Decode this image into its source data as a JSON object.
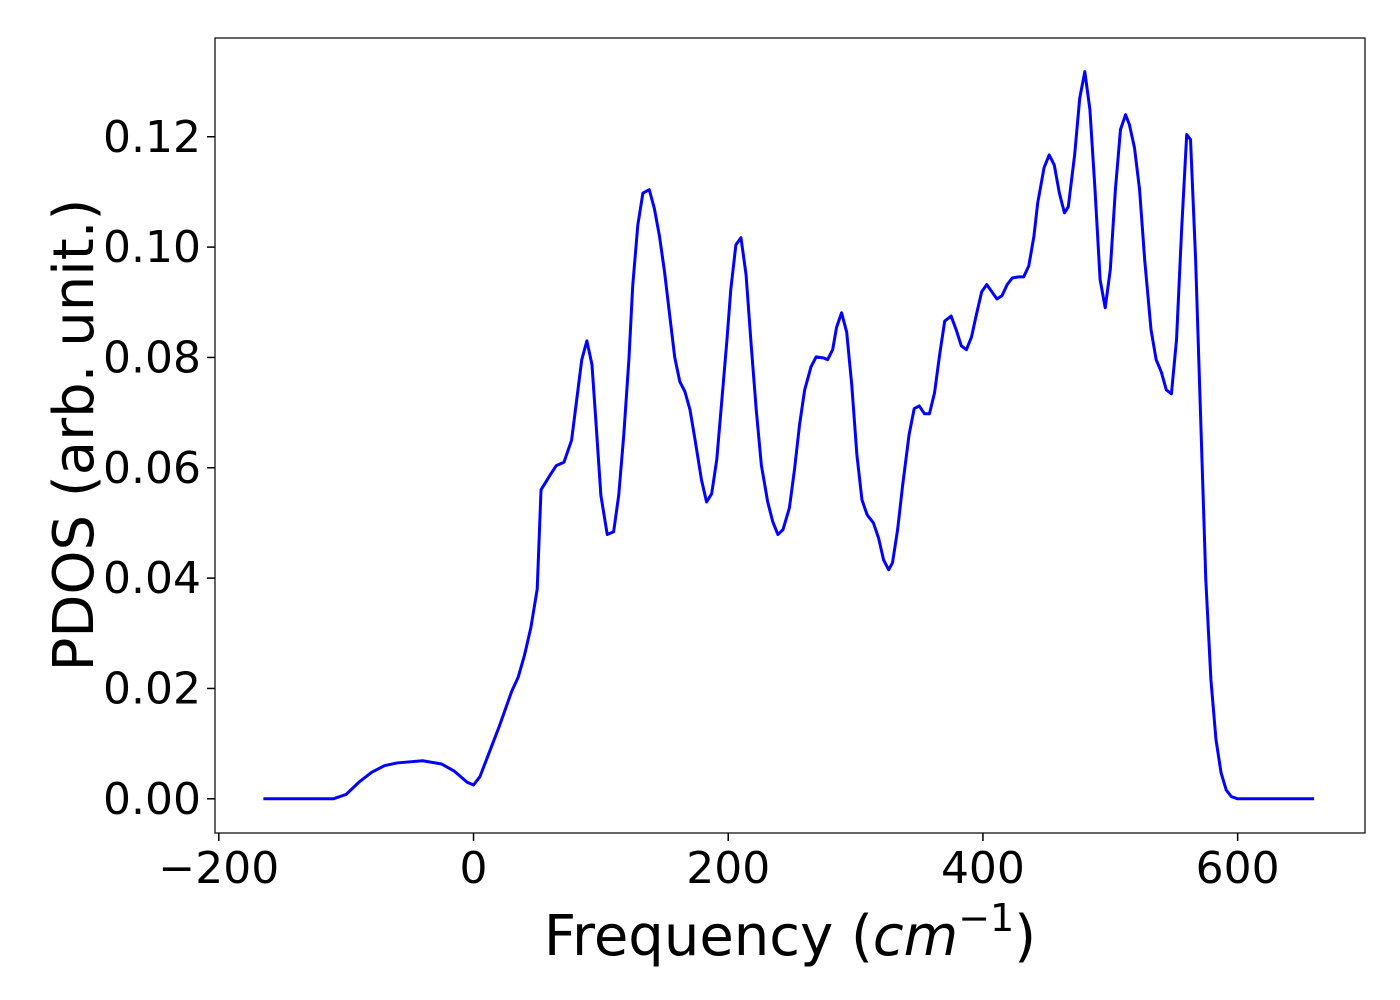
{
  "chart_data": {
    "type": "line",
    "xlabel": [
      "Frequency (",
      "cm",
      "−1",
      ")"
    ],
    "ylabel": "PDOS (arb. unit.)",
    "xlim": [
      -203,
      700
    ],
    "ylim": [
      -0.0062,
      0.1379
    ],
    "xticks": [
      {
        "value": -200,
        "label": "−200"
      },
      0,
      200,
      400,
      600
    ],
    "yticks": [
      {
        "value": 0,
        "label": "0.00"
      },
      {
        "value": 0.02,
        "label": "0.02"
      },
      {
        "value": 0.04,
        "label": "0.04"
      },
      {
        "value": 0.06,
        "label": "0.06"
      },
      {
        "value": 0.08,
        "label": "0.08"
      },
      {
        "value": 0.1,
        "label": "0.10"
      },
      {
        "value": 0.12,
        "label": "0.12"
      }
    ],
    "series": [
      {
        "name": "PDOS",
        "color": "#0000ff",
        "x": [
          -165,
          -110,
          -100,
          -90,
          -80,
          -70,
          -60,
          -40,
          -25,
          -15,
          -5,
          0,
          5,
          10,
          20,
          30,
          35,
          40,
          45,
          50,
          53,
          61,
          65,
          71,
          77,
          85,
          89,
          93,
          96,
          100,
          105,
          110,
          114,
          118,
          122,
          125,
          129,
          133,
          138,
          142,
          146,
          150,
          154,
          158,
          162,
          166,
          170,
          174,
          179,
          183,
          187,
          191,
          195,
          199,
          202,
          206,
          210,
          214,
          218,
          222,
          226,
          231,
          235,
          239,
          243,
          248,
          252,
          256,
          260,
          265,
          269,
          275,
          278,
          282,
          285,
          289,
          293,
          297,
          301,
          305,
          309,
          314,
          318,
          322,
          326,
          329,
          333,
          337,
          342,
          346,
          350,
          354,
          358,
          362,
          366,
          370,
          375,
          379,
          383,
          387,
          391,
          395,
          399,
          403,
          407,
          411,
          415,
          419,
          423,
          428,
          432,
          436,
          440,
          443,
          448,
          452,
          456,
          460,
          464,
          467,
          472,
          476,
          480,
          484,
          488,
          492,
          496,
          500,
          504,
          508,
          512,
          515,
          519,
          523,
          527,
          532,
          536,
          540,
          544,
          548,
          552,
          556,
          560,
          563,
          567,
          571,
          575,
          579,
          583,
          587,
          591,
          595,
          600,
          660
        ],
        "values": [
          0,
          0,
          0.0008,
          0.003,
          0.0048,
          0.006,
          0.0065,
          0.0069,
          0.0063,
          0.005,
          0.003,
          0.0025,
          0.004,
          0.007,
          0.013,
          0.0195,
          0.022,
          0.026,
          0.031,
          0.038,
          0.056,
          0.059,
          0.0604,
          0.061,
          0.065,
          0.0796,
          0.083,
          0.0787,
          0.0687,
          0.055,
          0.0479,
          0.0484,
          0.055,
          0.066,
          0.0796,
          0.093,
          0.104,
          0.1098,
          0.1104,
          0.107,
          0.102,
          0.0955,
          0.0877,
          0.08,
          0.0756,
          0.0738,
          0.0705,
          0.065,
          0.0578,
          0.0538,
          0.0553,
          0.0615,
          0.0723,
          0.0832,
          0.0923,
          0.1004,
          0.1017,
          0.095,
          0.0823,
          0.0705,
          0.0605,
          0.0538,
          0.0502,
          0.0479,
          0.0488,
          0.0527,
          0.0596,
          0.0678,
          0.0741,
          0.0783,
          0.0801,
          0.0799,
          0.0796,
          0.0814,
          0.0854,
          0.0881,
          0.0846,
          0.075,
          0.0624,
          0.0542,
          0.0515,
          0.05,
          0.0473,
          0.0433,
          0.0415,
          0.0428,
          0.0488,
          0.0569,
          0.066,
          0.0707,
          0.0712,
          0.0698,
          0.0698,
          0.0736,
          0.0805,
          0.0866,
          0.0875,
          0.085,
          0.0821,
          0.0814,
          0.0837,
          0.0879,
          0.0919,
          0.0932,
          0.0919,
          0.0906,
          0.0912,
          0.0932,
          0.0944,
          0.0946,
          0.0946,
          0.0966,
          0.1019,
          0.108,
          0.1144,
          0.1167,
          0.1149,
          0.1098,
          0.1062,
          0.1073,
          0.1167,
          0.127,
          0.1318,
          0.1249,
          0.1104,
          0.0941,
          0.089,
          0.0959,
          0.1104,
          0.1213,
          0.124,
          0.1222,
          0.118,
          0.1104,
          0.0977,
          0.085,
          0.0796,
          0.0774,
          0.0741,
          0.0734,
          0.0832,
          0.1031,
          0.1204,
          0.1195,
          0.0977,
          0.0687,
          0.0397,
          0.0216,
          0.0107,
          0.0047,
          0.0016,
          0.0004,
          0,
          0
        ]
      }
    ]
  }
}
